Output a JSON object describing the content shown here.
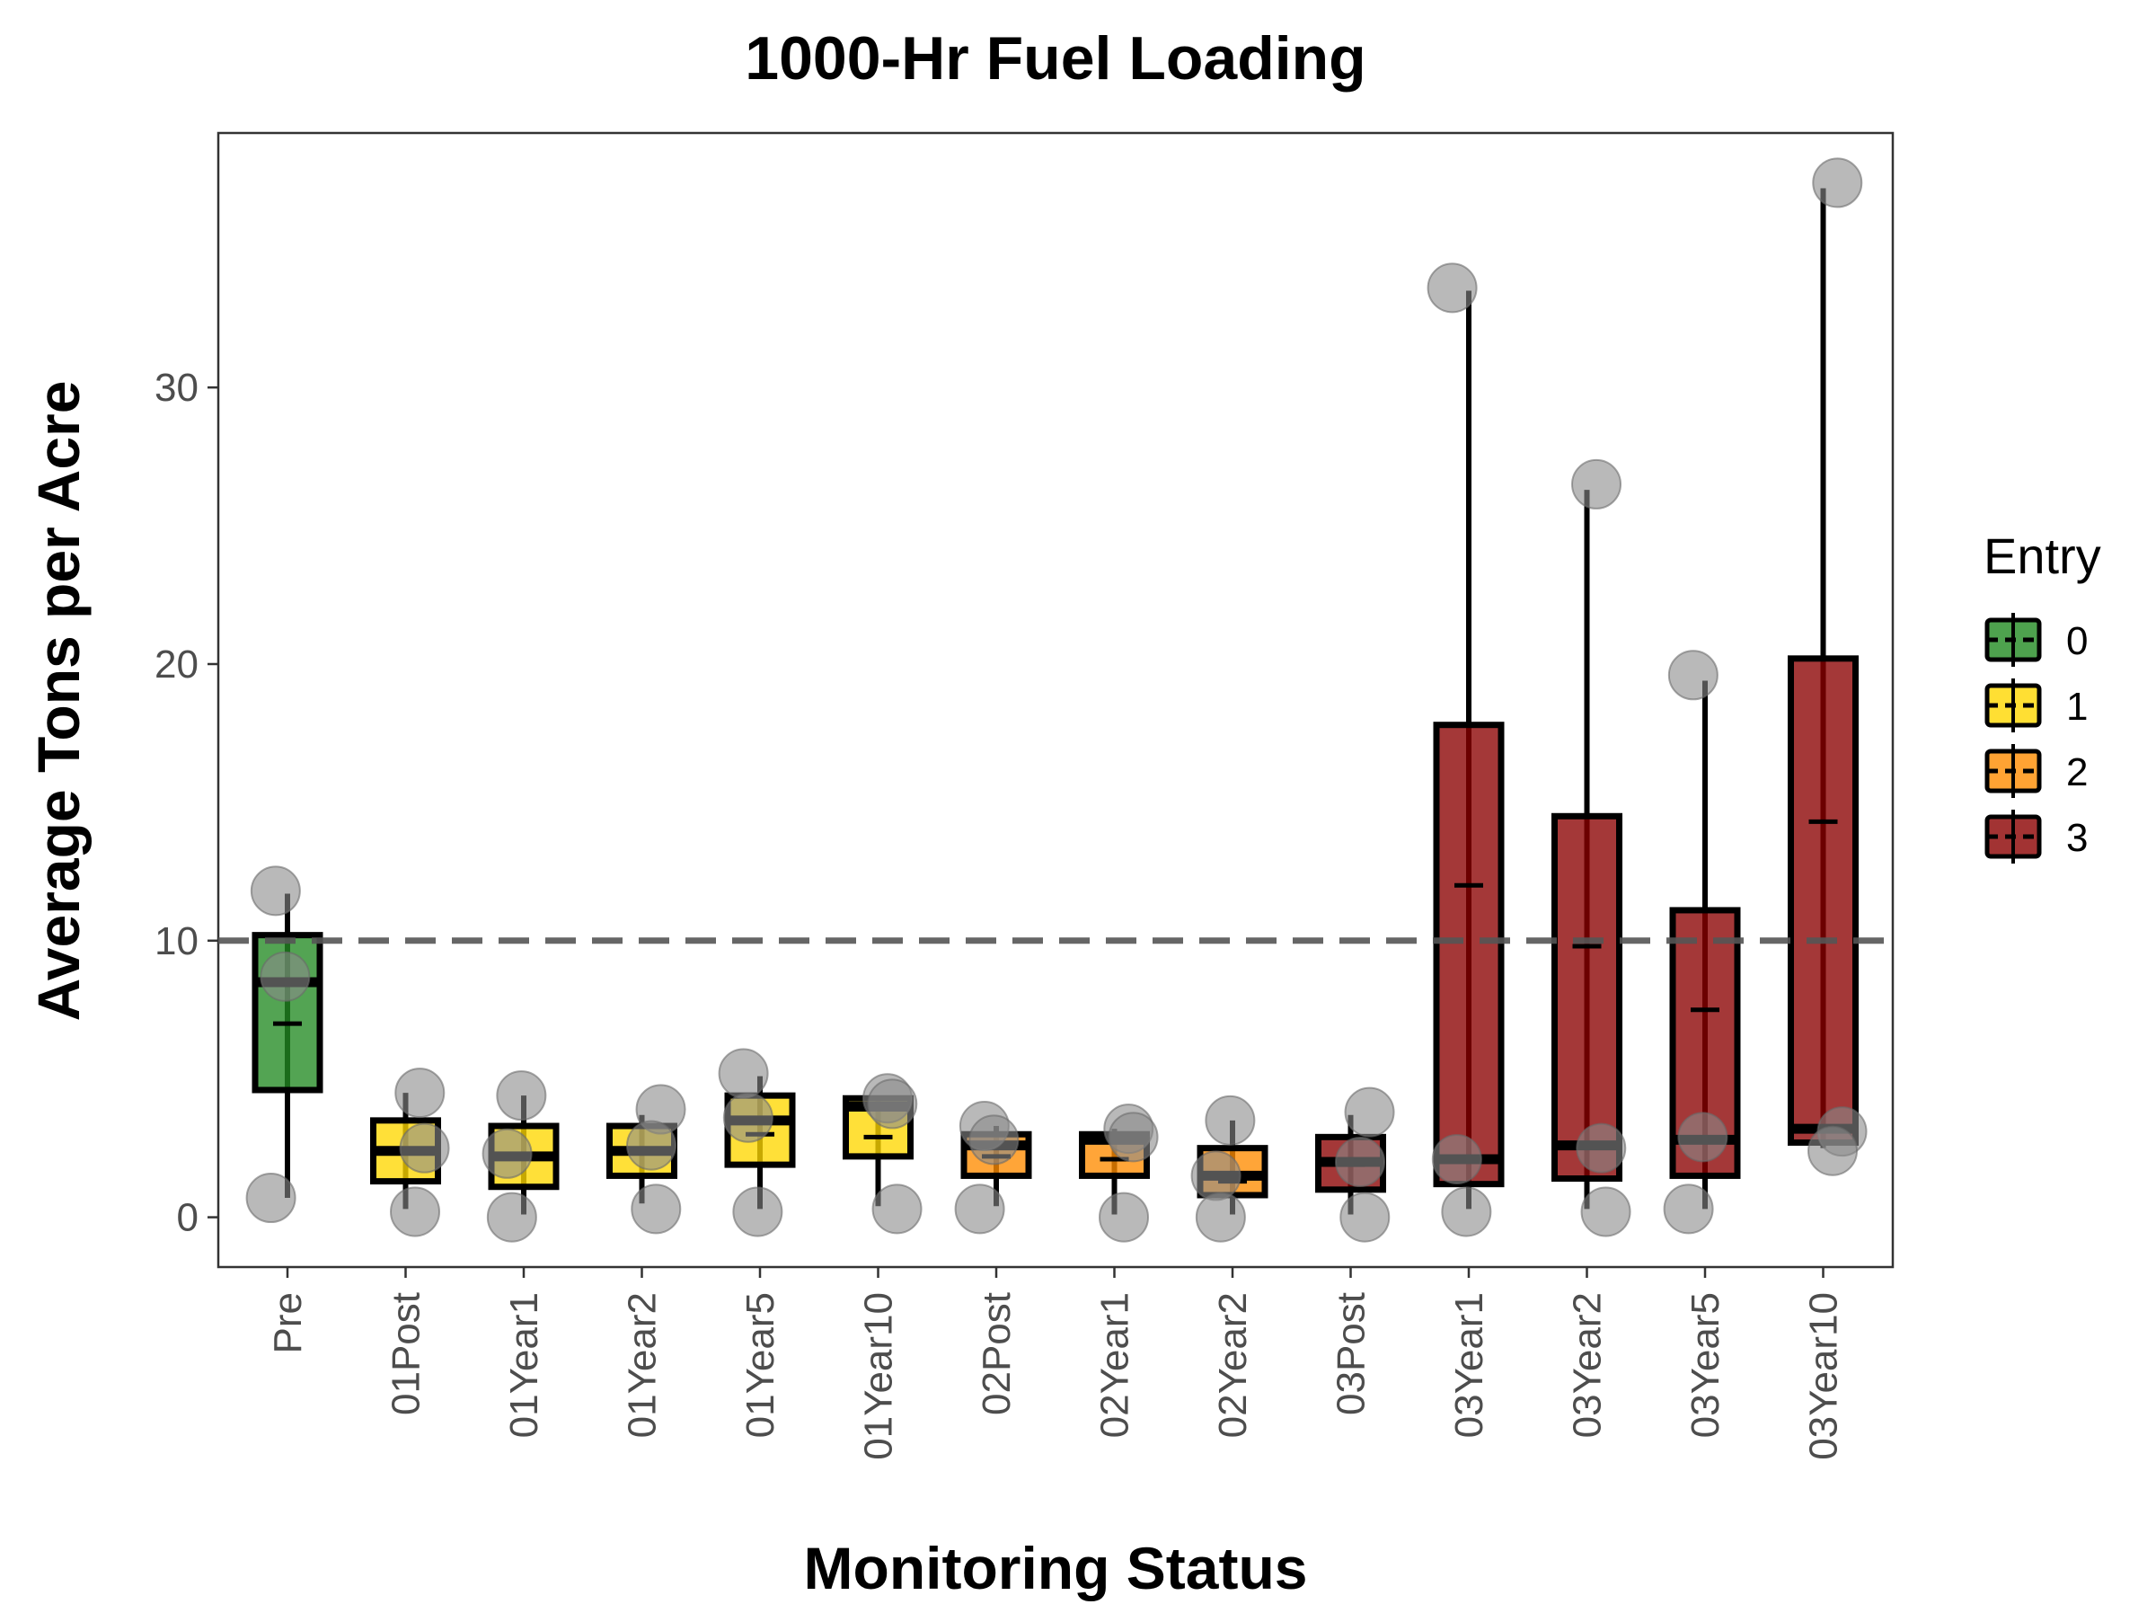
{
  "chart_data": {
    "type": "boxplot",
    "title": "1000-Hr Fuel Loading",
    "xlabel": "Monitoring Status",
    "ylabel": "Average Tons per Acre",
    "ylim": [
      -1.8,
      39.2
    ],
    "yticks": [
      0,
      10,
      20,
      30
    ],
    "reference_line": {
      "y": 10,
      "style": "dashed"
    },
    "grid": false,
    "legend": {
      "title": "Entry",
      "position": "right",
      "entries": [
        {
          "label": "0",
          "color": "#228B22"
        },
        {
          "label": "1",
          "color": "#FFD700"
        },
        {
          "label": "2",
          "color": "#FF8C00"
        },
        {
          "label": "3",
          "color": "#8B0000"
        }
      ]
    },
    "categories": [
      "Pre",
      "01Post",
      "01Year1",
      "01Year2",
      "01Year5",
      "01Year10",
      "02Post",
      "02Year1",
      "02Year2",
      "03Post",
      "03Year1",
      "03Year2",
      "03Year5",
      "03Year10"
    ],
    "series": [
      {
        "category": "Pre",
        "entry": "0",
        "whisker_low": 0.7,
        "q1": 4.6,
        "median": 8.5,
        "mean": 7.0,
        "q3": 10.2,
        "whisker_high": 11.7,
        "points": [
          11.8,
          8.7,
          0.7
        ]
      },
      {
        "category": "01Post",
        "entry": "1",
        "whisker_low": 0.3,
        "q1": 1.3,
        "median": 2.4,
        "mean": 2.4,
        "q3": 3.5,
        "whisker_high": 4.5,
        "points": [
          4.5,
          2.5,
          0.2
        ]
      },
      {
        "category": "01Year1",
        "entry": "1",
        "whisker_low": 0.1,
        "q1": 1.1,
        "median": 2.2,
        "mean": 2.2,
        "q3": 3.3,
        "whisker_high": 4.4,
        "points": [
          4.4,
          2.3,
          0.0
        ]
      },
      {
        "category": "01Year2",
        "entry": "1",
        "whisker_low": 0.5,
        "q1": 1.5,
        "median": 2.4,
        "mean": 2.4,
        "q3": 3.3,
        "whisker_high": 3.7,
        "points": [
          3.9,
          2.6,
          0.3
        ]
      },
      {
        "category": "01Year5",
        "entry": "1",
        "whisker_low": 0.3,
        "q1": 1.9,
        "median": 3.5,
        "mean": 3.0,
        "q3": 4.4,
        "whisker_high": 5.1,
        "points": [
          5.2,
          3.6,
          0.2
        ]
      },
      {
        "category": "01Year10",
        "entry": "1",
        "whisker_low": 0.4,
        "q1": 2.2,
        "median": 4.0,
        "mean": 2.9,
        "q3": 4.3,
        "whisker_high": 4.3,
        "points": [
          4.3,
          4.1,
          0.3
        ]
      },
      {
        "category": "02Post",
        "entry": "2",
        "whisker_low": 0.4,
        "q1": 1.5,
        "median": 2.6,
        "mean": 2.2,
        "q3": 3.0,
        "whisker_high": 3.3,
        "points": [
          3.3,
          2.8,
          0.3
        ]
      },
      {
        "category": "02Year1",
        "entry": "2",
        "whisker_low": 0.1,
        "q1": 1.5,
        "median": 2.8,
        "mean": 2.1,
        "q3": 3.0,
        "whisker_high": 3.2,
        "points": [
          3.2,
          2.9,
          0.0
        ]
      },
      {
        "category": "02Year2",
        "entry": "2",
        "whisker_low": 0.1,
        "q1": 0.8,
        "median": 1.5,
        "mean": 1.3,
        "q3": 2.5,
        "whisker_high": 3.5,
        "points": [
          3.5,
          1.5,
          0.0
        ]
      },
      {
        "category": "03Post",
        "entry": "3",
        "whisker_low": 0.1,
        "q1": 1.0,
        "median": 2.0,
        "mean": 1.9,
        "q3": 2.9,
        "whisker_high": 3.7,
        "points": [
          3.8,
          2.0,
          0.0
        ]
      },
      {
        "category": "03Year1",
        "entry": "3",
        "whisker_low": 0.3,
        "q1": 1.2,
        "median": 2.1,
        "mean": 12.0,
        "q3": 17.8,
        "whisker_high": 33.5,
        "points": [
          33.6,
          2.1,
          0.2
        ]
      },
      {
        "category": "03Year2",
        "entry": "3",
        "whisker_low": 0.3,
        "q1": 1.4,
        "median": 2.6,
        "mean": 9.8,
        "q3": 14.5,
        "whisker_high": 26.3,
        "points": [
          26.5,
          2.5,
          0.2
        ]
      },
      {
        "category": "03Year5",
        "entry": "3",
        "whisker_low": 0.3,
        "q1": 1.5,
        "median": 2.8,
        "mean": 7.5,
        "q3": 11.1,
        "whisker_high": 19.4,
        "points": [
          19.6,
          2.9,
          0.3
        ]
      },
      {
        "category": "03Year10",
        "entry": "3",
        "whisker_low": 2.5,
        "q1": 2.7,
        "median": 3.2,
        "mean": 14.3,
        "q3": 20.2,
        "whisker_high": 37.2,
        "points": [
          37.4,
          3.1,
          2.4
        ]
      }
    ]
  }
}
